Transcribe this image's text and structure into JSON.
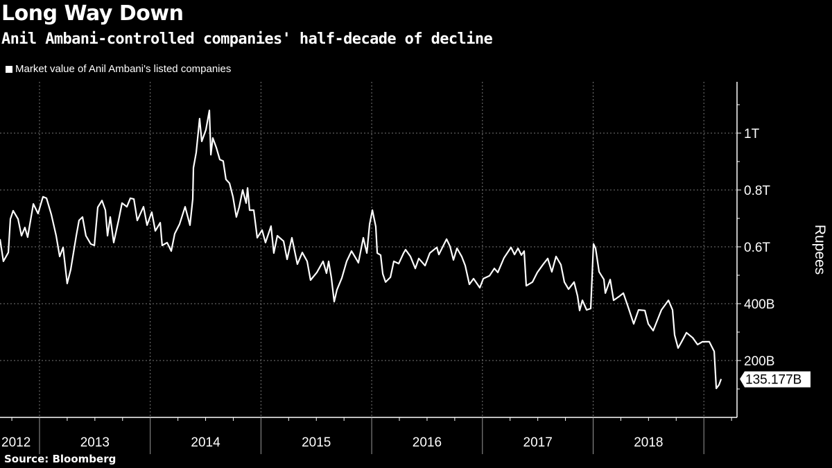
{
  "header": {
    "title": "Long Way Down",
    "subtitle": "Anil Ambani-controlled companies' half-decade of decline"
  },
  "footer": {
    "source": "Source: Bloomberg"
  },
  "colors": {
    "background": "#000000",
    "line": "#ffffff",
    "grid": "#777777"
  },
  "chart_data": {
    "type": "line",
    "title": "Long Way Down",
    "subtitle": "Anil Ambani-controlled companies' half-decade of decline",
    "legend": [
      {
        "label": "Market value of Anil Ambani's listed companies",
        "position": "top-left"
      }
    ],
    "xlabel": "",
    "ylabel": "Rupees",
    "x_unit": "decimal year",
    "y_unit": "billion rupees",
    "xlim": [
      2012.643,
      2019.43
    ],
    "ylim": [
      0,
      1180
    ],
    "grid": true,
    "x_ticks": [
      {
        "label": "2012",
        "start": 2012.643,
        "end": 2013
      },
      {
        "label": "2013",
        "start": 2013,
        "end": 2014
      },
      {
        "label": "2014",
        "start": 2014,
        "end": 2015
      },
      {
        "label": "2015",
        "start": 2015,
        "end": 2016
      },
      {
        "label": "2016",
        "start": 2016,
        "end": 2017
      },
      {
        "label": "2017",
        "start": 2017,
        "end": 2018
      },
      {
        "label": "2018",
        "start": 2018,
        "end": 2019
      }
    ],
    "y_ticks": [
      {
        "value": 200,
        "label": "200B"
      },
      {
        "value": 400,
        "label": "400B"
      },
      {
        "value": 600,
        "label": "0.6T"
      },
      {
        "value": 800,
        "label": "0.8T"
      },
      {
        "value": 1000,
        "label": "1T"
      }
    ],
    "last_value": {
      "value": 135.177,
      "label": "135.177B"
    },
    "series": [
      {
        "name": "Market value of Anil Ambani's listed companies",
        "x": [
          2012.643,
          2012.674,
          2012.718,
          2012.737,
          2012.762,
          2012.806,
          2012.837,
          2012.868,
          2012.893,
          2012.944,
          2012.987,
          2013.031,
          2013.063,
          2013.106,
          2013.15,
          2013.182,
          2013.213,
          2013.25,
          2013.282,
          2013.332,
          2013.357,
          2013.388,
          2013.419,
          2013.463,
          2013.495,
          2013.526,
          2013.564,
          2013.595,
          2013.614,
          2013.639,
          2013.67,
          2013.714,
          2013.745,
          2013.789,
          2013.82,
          2013.852,
          2013.883,
          2013.939,
          2013.971,
          2014.014,
          2014.046,
          2014.09,
          2014.108,
          2014.152,
          2014.19,
          2014.221,
          2014.265,
          2014.315,
          2014.359,
          2014.384,
          2014.39,
          2014.415,
          2014.446,
          2014.465,
          2014.503,
          2014.534,
          2014.547,
          2014.565,
          2014.597,
          2014.628,
          2014.659,
          2014.684,
          2014.716,
          2014.747,
          2014.778,
          2014.803,
          2014.835,
          2014.866,
          2014.879,
          2014.897,
          2014.935,
          2014.966,
          2015.01,
          2015.041,
          2015.091,
          2015.116,
          2015.148,
          2015.204,
          2015.236,
          2015.279,
          2015.329,
          2015.373,
          2015.417,
          2015.448,
          2015.505,
          2015.561,
          2015.592,
          2015.611,
          2015.636,
          2015.661,
          2015.686,
          2015.73,
          2015.774,
          2015.818,
          2015.862,
          2015.88,
          2015.924,
          2015.956,
          2015.981,
          2016.006,
          2016.037,
          2016.05,
          2016.081,
          2016.1,
          2016.125,
          2016.169,
          2016.2,
          2016.244,
          2016.288,
          2016.306,
          2016.35,
          2016.394,
          2016.425,
          2016.482,
          2016.525,
          2016.588,
          2016.607,
          2016.676,
          2016.707,
          2016.738,
          2016.77,
          2016.813,
          2016.845,
          2016.882,
          2016.92,
          2016.976,
          2017.008,
          2017.064,
          2017.108,
          2017.139,
          2017.195,
          2017.258,
          2017.29,
          2017.321,
          2017.352,
          2017.377,
          2017.396,
          2017.452,
          2017.496,
          2017.546,
          2017.59,
          2017.627,
          2017.665,
          2017.709,
          2017.74,
          2017.778,
          2017.828,
          2017.859,
          2017.878,
          2017.903,
          2017.941,
          2017.978,
          2018.003,
          2018.022,
          2018.054,
          2018.097,
          2018.11,
          2018.154,
          2018.185,
          2018.229,
          2018.273,
          2018.316,
          2018.366,
          2018.41,
          2018.467,
          2018.498,
          2018.542,
          2018.617,
          2018.68,
          2018.717,
          2018.736,
          2018.767,
          2018.799,
          2018.843,
          2018.899,
          2018.943,
          2018.987,
          2019.049,
          2019.093,
          2019.112,
          2019.137,
          2019.156
        ],
        "values": [
          627,
          549,
          580,
          698,
          727,
          698,
          639,
          668,
          634,
          751,
          717,
          776,
          771,
          715,
          639,
          566,
          598,
          471,
          520,
          639,
          693,
          705,
          639,
          610,
          605,
          739,
          763,
          729,
          639,
          705,
          615,
          693,
          754,
          741,
          771,
          768,
          693,
          741,
          676,
          722,
          656,
          685,
          605,
          615,
          585,
          646,
          680,
          741,
          676,
          768,
          878,
          932,
          1051,
          971,
          1012,
          1080,
          924,
          983,
          949,
          907,
          902,
          837,
          824,
          776,
          705,
          739,
          800,
          754,
          807,
          729,
          729,
          632,
          659,
          615,
          673,
          578,
          639,
          620,
          556,
          632,
          539,
          580,
          549,
          483,
          510,
          549,
          507,
          549,
          490,
          407,
          449,
          490,
          549,
          585,
          556,
          544,
          632,
          578,
          680,
          729,
          671,
          578,
          571,
          505,
          476,
          493,
          549,
          541,
          578,
          590,
          566,
          524,
          559,
          534,
          578,
          598,
          573,
          627,
          602,
          554,
          595,
          566,
          534,
          468,
          488,
          456,
          488,
          498,
          524,
          510,
          561,
          598,
          573,
          595,
          571,
          585,
          463,
          476,
          510,
          537,
          559,
          512,
          566,
          537,
          476,
          451,
          476,
          427,
          376,
          412,
          378,
          383,
          610,
          595,
          512,
          485,
          437,
          485,
          412,
          424,
          437,
          388,
          329,
          378,
          376,
          329,
          305,
          378,
          412,
          378,
          290,
          244,
          266,
          298,
          280,
          256,
          266,
          266,
          232,
          102,
          115,
          135.177
        ]
      }
    ]
  }
}
